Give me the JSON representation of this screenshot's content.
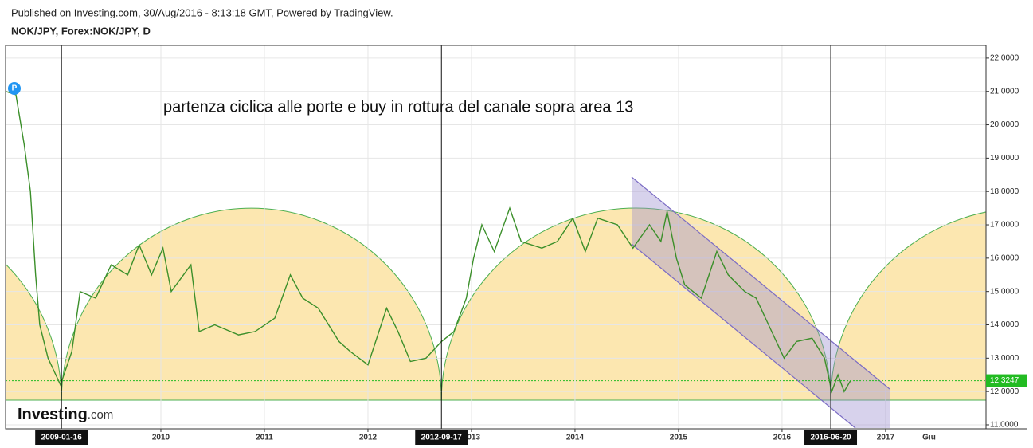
{
  "header": {
    "published": "Published on Investing.com, 30/Aug/2016 - 8:13:18 GMT, Powered by TradingView.",
    "symbol": "NOK/JPY, Forex:NOK/JPY, D"
  },
  "logo": {
    "brand": "Investing",
    "suffix": ".com"
  },
  "chart_data": {
    "type": "line",
    "annotation": "partenza ciclica alle porte e buy in rottura del canale sopra area 13",
    "marker_label": "P",
    "x": [
      2008.5,
      2008.6,
      2008.68,
      2008.74,
      2008.79,
      2008.83,
      2008.91,
      2009.03,
      2009.14,
      2009.22,
      2009.37,
      2009.52,
      2009.68,
      2009.79,
      2009.91,
      2010.02,
      2010.1,
      2010.29,
      2010.37,
      2010.52,
      2010.75,
      2010.91,
      2011.1,
      2011.25,
      2011.37,
      2011.52,
      2011.72,
      2011.83,
      2012.0,
      2012.18,
      2012.29,
      2012.41,
      2012.56,
      2012.71,
      2012.83,
      2012.95,
      2013.02,
      2013.1,
      2013.22,
      2013.37,
      2013.48,
      2013.68,
      2013.83,
      2013.98,
      2014.1,
      2014.22,
      2014.41,
      2014.56,
      2014.72,
      2014.83,
      2014.89,
      2014.98,
      2015.06,
      2015.22,
      2015.37,
      2015.48,
      2015.64,
      2015.75,
      2015.87,
      2016.02,
      2016.14,
      2016.29,
      2016.41,
      2016.48,
      2016.54,
      2016.6,
      2016.66
    ],
    "series": [
      {
        "name": "NOK/JPY",
        "color": "#3b8f2a",
        "values": [
          21.0,
          20.9,
          19.4,
          18.0,
          15.5,
          14.0,
          13.0,
          12.2,
          13.2,
          15.0,
          14.8,
          15.8,
          15.5,
          16.4,
          15.5,
          16.3,
          15.0,
          15.8,
          13.8,
          14.0,
          13.7,
          13.8,
          14.2,
          15.5,
          14.8,
          14.5,
          13.5,
          13.2,
          12.8,
          14.5,
          13.8,
          12.9,
          13.0,
          13.5,
          13.8,
          14.8,
          16.0,
          17.0,
          16.2,
          17.5,
          16.5,
          16.3,
          16.5,
          17.2,
          16.2,
          17.2,
          17.0,
          16.3,
          17.0,
          16.5,
          17.4,
          16.0,
          15.2,
          14.8,
          16.2,
          15.5,
          15.0,
          14.8,
          14.0,
          13.0,
          13.5,
          13.6,
          13.0,
          12.0,
          12.5,
          12.0,
          12.32
        ]
      }
    ],
    "last_price": 12.3247,
    "last_price_color": "#22bb22",
    "xlim": [
      2008.5,
      2017.97
    ],
    "xticks": [
      2010,
      2011,
      2012,
      2013,
      2014,
      2015,
      2016,
      2017,
      {
        "value": 2017.42,
        "label": "Giu"
      }
    ],
    "cycle_marks": [
      {
        "value": 2009.04,
        "label": "2009-01-16"
      },
      {
        "value": 2012.71,
        "label": "2012-09-17"
      },
      {
        "value": 2016.47,
        "label": "2016-06-20"
      }
    ],
    "ylim": [
      10.88,
      22.38
    ],
    "yticks": [
      {
        "value": 11,
        "label": "11.0000"
      },
      {
        "value": 12,
        "label": "12.0000"
      },
      {
        "value": 13,
        "label": "13.0000"
      },
      {
        "value": 14,
        "label": "14.0000"
      },
      {
        "value": 15,
        "label": "15.0000"
      },
      {
        "value": 16,
        "label": "16.0000"
      },
      {
        "value": 17,
        "label": "17.0000"
      },
      {
        "value": 18,
        "label": "18.0000"
      },
      {
        "value": 19,
        "label": "19.0000"
      },
      {
        "value": 20,
        "label": "20.0000"
      },
      {
        "value": 21,
        "label": "21.0000"
      },
      {
        "value": 22,
        "label": "22.0000"
      }
    ],
    "grid": true
  }
}
